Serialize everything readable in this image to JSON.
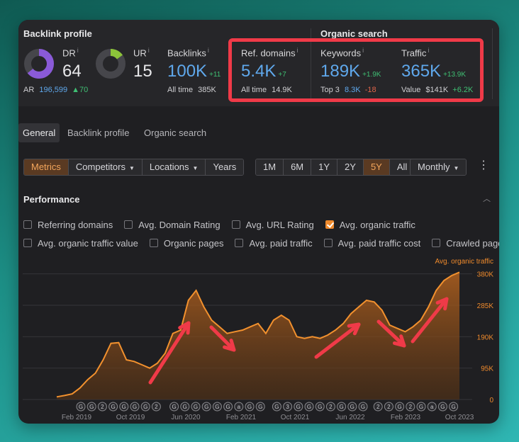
{
  "backlink_profile": {
    "title": "Backlink profile",
    "dr": {
      "label": "DR",
      "value": "64",
      "fill": 0.64
    },
    "ar": {
      "label": "AR",
      "value": "196,599",
      "delta": "▲70"
    },
    "ur": {
      "label": "UR",
      "value": "15",
      "fill": 0.15
    },
    "backlinks": {
      "label": "Backlinks",
      "value": "100K",
      "delta": "+11",
      "sub_label": "All time",
      "sub_value": "385K"
    },
    "ref_domains": {
      "label": "Ref. domains",
      "value": "5.4K",
      "delta": "+7",
      "sub_label": "All time",
      "sub_value": "14.9K"
    }
  },
  "organic_search": {
    "title": "Organic search",
    "keywords": {
      "label": "Keywords",
      "value": "189K",
      "delta": "+1.9K",
      "sub_label": "Top 3",
      "sub_value": "8.3K",
      "sub_delta": "-18"
    },
    "traffic": {
      "label": "Traffic",
      "value": "365K",
      "delta": "+13.9K",
      "sub_label": "Value",
      "sub_value": "$141K",
      "sub_delta": "+6.2K"
    }
  },
  "tabs": [
    "General",
    "Backlink profile",
    "Organic search"
  ],
  "toolbar": {
    "left_buttons": [
      "Metrics",
      "Competitors",
      "Locations",
      "Years"
    ],
    "ranges": [
      "1M",
      "6M",
      "1Y",
      "2Y",
      "5Y",
      "All"
    ],
    "interval": "Monthly"
  },
  "performance": {
    "title": "Performance",
    "options_row1": [
      {
        "label": "Referring domains",
        "checked": false
      },
      {
        "label": "Avg. Domain Rating",
        "checked": false
      },
      {
        "label": "Avg. URL Rating",
        "checked": false
      },
      {
        "label": "Avg. organic traffic",
        "checked": true
      }
    ],
    "options_row2": [
      {
        "label": "Avg. organic traffic value",
        "checked": false
      },
      {
        "label": "Organic pages",
        "checked": false
      },
      {
        "label": "Avg. paid traffic",
        "checked": false
      },
      {
        "label": "Avg. paid traffic cost",
        "checked": false
      },
      {
        "label": "Crawled pages",
        "checked": false
      }
    ]
  },
  "colors": {
    "accent": "#ef8a2c",
    "blue": "#5fa8ec",
    "green": "#3fbf73",
    "highlight": "#f03a48"
  },
  "chart_data": {
    "type": "area",
    "series": [
      {
        "name": "Avg. organic traffic",
        "values": [
          8000,
          12000,
          17000,
          35000,
          60000,
          80000,
          120000,
          170000,
          172000,
          120000,
          115000,
          105000,
          95000,
          110000,
          140000,
          200000,
          210000,
          300000,
          330000,
          280000,
          240000,
          220000,
          200000,
          205000,
          210000,
          220000,
          230000,
          200000,
          240000,
          255000,
          240000,
          190000,
          185000,
          190000,
          185000,
          195000,
          210000,
          230000,
          260000,
          280000,
          300000,
          295000,
          270000,
          225000,
          215000,
          205000,
          220000,
          240000,
          280000,
          330000,
          360000,
          375000,
          385000
        ]
      }
    ],
    "x_ticks": [
      "Feb 2019",
      "Oct 2019",
      "Jun 2020",
      "Feb 2021",
      "Oct 2021",
      "Jun 2022",
      "Feb 2023",
      "Oct 2023"
    ],
    "y_ticks": [
      "380K",
      "285K",
      "190K",
      "95K",
      "0"
    ],
    "ylim": [
      0,
      420000
    ],
    "annotations": [
      "G",
      "G",
      "2",
      "G",
      "G",
      "G",
      "G",
      "2",
      "G",
      "G",
      "G",
      "G",
      "G",
      "G",
      "a",
      "G",
      "G",
      "G",
      "3",
      "G",
      "G",
      "G",
      "2",
      "G",
      "G",
      "G",
      "2",
      "2",
      "G",
      "2",
      "G",
      "a",
      "G",
      "G"
    ]
  }
}
